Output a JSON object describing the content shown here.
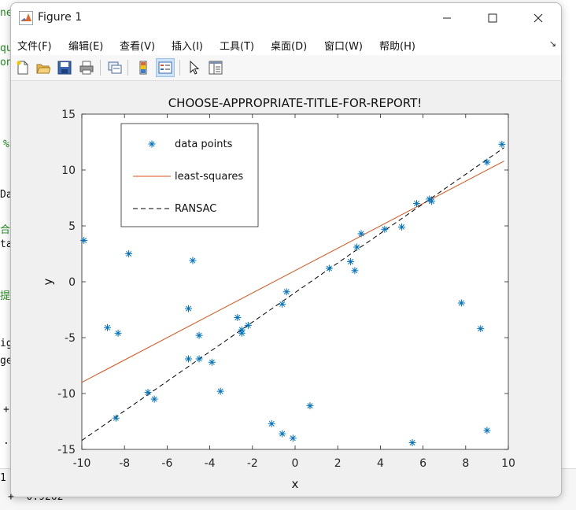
{
  "window": {
    "title": "Figure 1"
  },
  "menu": [
    "文件(F)",
    "编辑(E)",
    "查看(V)",
    "插入(I)",
    "工具(T)",
    "桌面(D)",
    "窗口(W)",
    "帮助(H)"
  ],
  "background_editor": {
    "lines": [
      "ne",
      "qu",
      "on",
      "%",
      "Da",
      "合",
      "ta",
      "提",
      "ig",
      "ge",
      "+",
      ".",
      "1",
      "+ -0.9262"
    ]
  },
  "chart_data": {
    "type": "scatter",
    "title": "CHOOSE-APPROPRIATE-TITLE-FOR-REPORT!",
    "xlabel": "x",
    "ylabel": "y",
    "xlim": [
      -10,
      10
    ],
    "ylim": [
      -15,
      15
    ],
    "xticks": [
      "-10",
      "-8",
      "-6",
      "-4",
      "-2",
      "0",
      "2",
      "4",
      "6",
      "8",
      "10"
    ],
    "yticks": [
      "15",
      "10",
      "5",
      "0",
      "-5",
      "-10",
      "-15"
    ],
    "legend": {
      "position": "top-left",
      "entries": [
        "data points",
        "least-squares",
        "RANSAC"
      ]
    },
    "series": [
      {
        "name": "data points",
        "marker": "*",
        "color": "#0072bd",
        "points": [
          [
            -9.9,
            3.7
          ],
          [
            -7.8,
            2.5
          ],
          [
            -4.8,
            1.9
          ],
          [
            -8.8,
            -4.1
          ],
          [
            -8.3,
            -4.6
          ],
          [
            -5.0,
            -2.4
          ],
          [
            -4.5,
            -4.8
          ],
          [
            -5.0,
            -6.9
          ],
          [
            -4.5,
            -6.9
          ],
          [
            -3.9,
            -7.2
          ],
          [
            -6.9,
            -9.9
          ],
          [
            -6.6,
            -10.5
          ],
          [
            -8.4,
            -12.2
          ],
          [
            -3.5,
            -9.8
          ],
          [
            -2.7,
            -3.2
          ],
          [
            -2.5,
            -4.3
          ],
          [
            -2.5,
            -4.6
          ],
          [
            -2.2,
            -3.9
          ],
          [
            -0.6,
            -2.0
          ],
          [
            -0.4,
            -0.9
          ],
          [
            -1.1,
            -12.7
          ],
          [
            -0.6,
            -13.6
          ],
          [
            -0.1,
            -14.0
          ],
          [
            0.7,
            -11.1
          ],
          [
            1.6,
            1.2
          ],
          [
            2.6,
            1.8
          ],
          [
            2.8,
            1.0
          ],
          [
            2.9,
            3.1
          ],
          [
            3.1,
            4.3
          ],
          [
            4.2,
            4.7
          ],
          [
            5.0,
            4.9
          ],
          [
            5.7,
            7.0
          ],
          [
            6.3,
            7.4
          ],
          [
            6.4,
            7.2
          ],
          [
            9.7,
            12.3
          ],
          [
            9.0,
            10.7
          ],
          [
            7.8,
            -1.9
          ],
          [
            8.7,
            -4.2
          ],
          [
            9.0,
            -13.3
          ],
          [
            5.5,
            -14.4
          ]
        ]
      },
      {
        "name": "least-squares",
        "style": "solid",
        "color": "#d95319",
        "line": [
          [
            -10,
            -9.0
          ],
          [
            9.8,
            10.8
          ]
        ]
      },
      {
        "name": "RANSAC",
        "style": "dashed",
        "color": "#000000",
        "line": [
          [
            -10,
            -14.2
          ],
          [
            9.8,
            12.0
          ]
        ]
      }
    ]
  }
}
